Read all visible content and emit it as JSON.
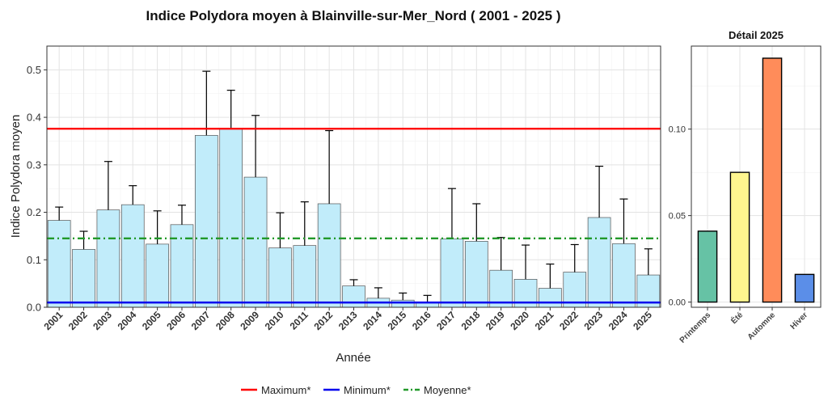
{
  "chart_data": [
    {
      "type": "bar",
      "title": "Indice Polydora moyen à Blainville-sur-Mer_Nord ( 2001 - 2025 )",
      "xlabel": "Année",
      "ylabel": "Indice Polydora moyen",
      "ylim": [
        0,
        0.55
      ],
      "yticks": [
        "0.0",
        "0.1",
        "0.2",
        "0.3",
        "0.4",
        "0.5"
      ],
      "grid": true,
      "categories": [
        "2001",
        "2002",
        "2003",
        "2004",
        "2005",
        "2006",
        "2007",
        "2008",
        "2009",
        "2010",
        "2011",
        "2012",
        "2013",
        "2014",
        "2015",
        "2016",
        "2017",
        "2018",
        "2019",
        "2020",
        "2021",
        "2022",
        "2023",
        "2024",
        "2025"
      ],
      "values": [
        0.183,
        0.122,
        0.205,
        0.216,
        0.133,
        0.174,
        0.362,
        0.376,
        0.274,
        0.125,
        0.13,
        0.218,
        0.045,
        0.019,
        0.015,
        0.01,
        0.144,
        0.139,
        0.078,
        0.059,
        0.04,
        0.074,
        0.189,
        0.134,
        0.068
      ],
      "error_upper": [
        0.211,
        0.16,
        0.307,
        0.256,
        0.203,
        0.215,
        0.497,
        0.457,
        0.404,
        0.199,
        0.222,
        0.372,
        0.058,
        0.041,
        0.03,
        0.025,
        0.25,
        0.218,
        0.147,
        0.131,
        0.091,
        0.132,
        0.297,
        0.228,
        0.123
      ],
      "bar_color": "#c1ecfa",
      "reference_lines": [
        {
          "name": "Maximum*",
          "value": 0.376,
          "color": "#ff0000",
          "style": "solid"
        },
        {
          "name": "Minimum*",
          "value": 0.01,
          "color": "#0000ee",
          "style": "solid"
        },
        {
          "name": "Moyenne*",
          "value": 0.145,
          "color": "#22992a",
          "style": "dashdot"
        }
      ],
      "legend_position": "bottom"
    },
    {
      "type": "bar",
      "title": "Détail 2025",
      "categories": [
        "Printemps",
        "Été",
        "Automne",
        "Hiver"
      ],
      "values": [
        0.041,
        0.075,
        0.141,
        0.016
      ],
      "colors": [
        "#66c2a5",
        "#fff68f",
        "#ff8c5a",
        "#5b8ee8"
      ],
      "ylim": [
        -0.003,
        0.148
      ],
      "yticks": [
        "0.00",
        "0.05",
        "0.10"
      ]
    }
  ]
}
